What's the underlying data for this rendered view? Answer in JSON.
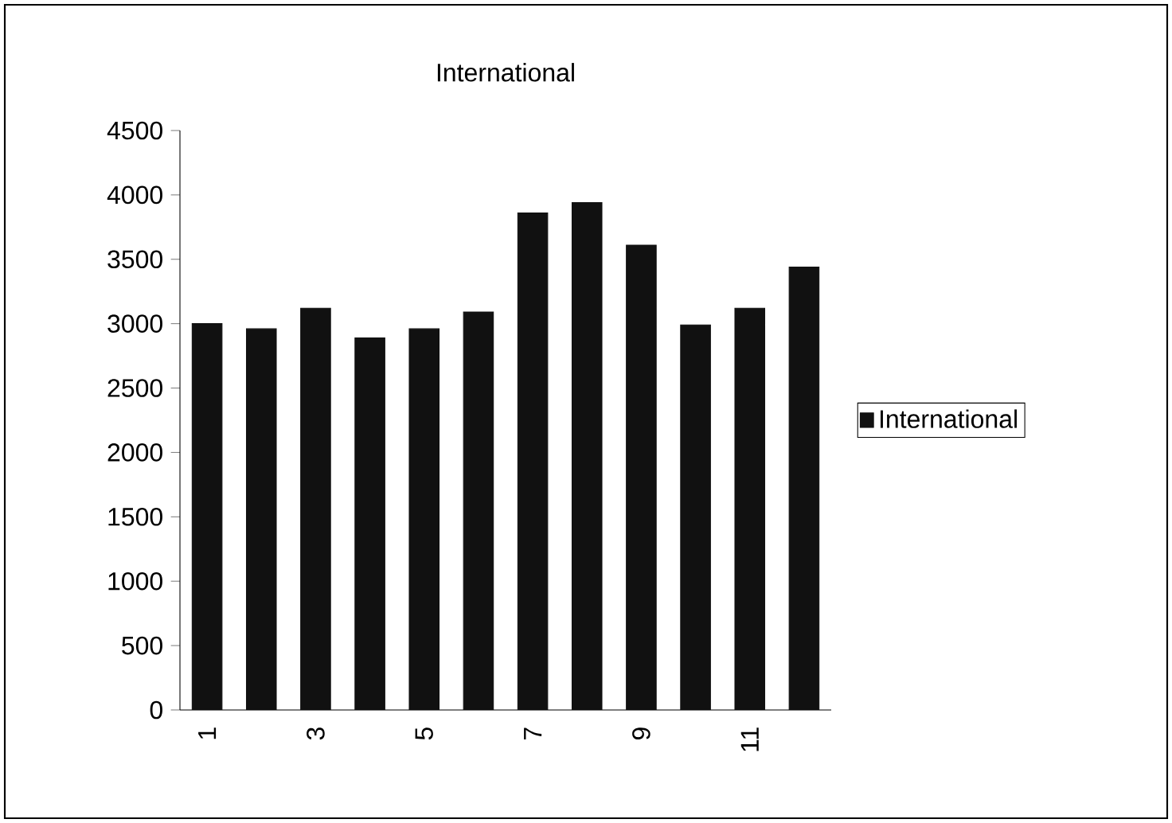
{
  "chart_data": {
    "type": "bar",
    "title": "International",
    "categories": [
      "1",
      null,
      "3",
      null,
      "5",
      null,
      "7",
      null,
      "9",
      null,
      "11",
      null
    ],
    "series": [
      {
        "name": "International",
        "color": "#111111",
        "values": [
          3000,
          2960,
          3120,
          2890,
          2960,
          3090,
          3860,
          3940,
          3610,
          2990,
          3120,
          3440
        ]
      }
    ],
    "ylim": [
      0,
      4500
    ],
    "yticks": [
      0,
      500,
      1000,
      1500,
      2000,
      2500,
      3000,
      3500,
      4000,
      4500
    ],
    "grid": false,
    "legend": "right"
  }
}
